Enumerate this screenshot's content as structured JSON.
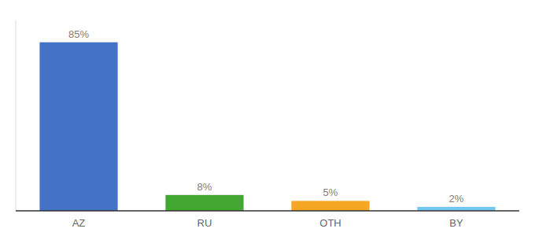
{
  "chart_data": {
    "type": "bar",
    "categories": [
      "AZ",
      "RU",
      "OTH",
      "BY"
    ],
    "values": [
      85,
      8,
      5,
      2
    ],
    "value_labels": [
      "85%",
      "8%",
      "5%",
      "2%"
    ],
    "colors": [
      "#4472C4",
      "#43A832",
      "#F5A623",
      "#72C8F0"
    ],
    "ylim": [
      0,
      96
    ],
    "data_labels": true,
    "tick_labels": "x",
    "grid": false
  }
}
